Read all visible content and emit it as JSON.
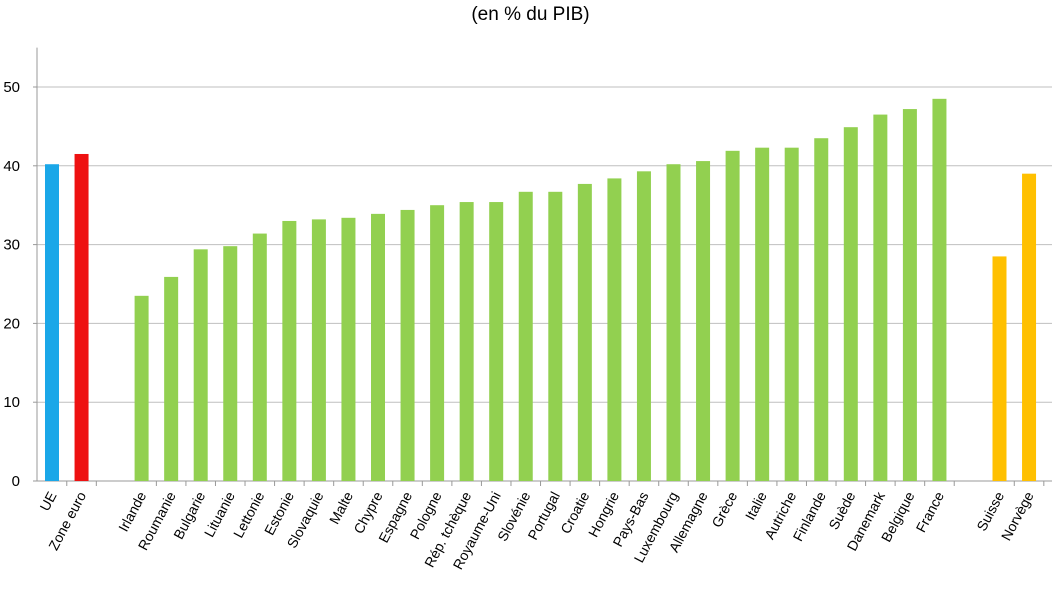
{
  "chart_data": {
    "type": "bar",
    "title": "",
    "subtitle": "(en % du PIB)",
    "xlabel": "",
    "ylabel": "",
    "ylim": [
      0,
      55
    ],
    "yticks": [
      0,
      10,
      20,
      30,
      40,
      50
    ],
    "grid": true,
    "categories": [
      "UE",
      "Zone euro",
      "Irlande",
      "Roumanie",
      "Bulgarie",
      "Lituanie",
      "Lettonie",
      "Estonie",
      "Slovaquie",
      "Malte",
      "Chypre",
      "Espagne",
      "Pologne",
      "Rép. tchèque",
      "Royaume-Uni",
      "Slovénie",
      "Portugal",
      "Croatie",
      "Hongrie",
      "Pays-Bas",
      "Luxembourg",
      "Allemagne",
      "Grèce",
      "Italie",
      "Autriche",
      "Finlande",
      "Suède",
      "Danemark",
      "Belgique",
      "France",
      "Suisse",
      "Norvège"
    ],
    "values": [
      40.2,
      41.5,
      23.5,
      25.9,
      29.4,
      29.8,
      31.4,
      33.0,
      33.2,
      33.4,
      33.9,
      34.4,
      35.0,
      35.4,
      35.4,
      36.7,
      36.7,
      37.7,
      38.4,
      39.3,
      40.2,
      40.6,
      41.9,
      42.3,
      42.3,
      43.5,
      44.9,
      46.5,
      47.2,
      48.5,
      28.5,
      39.0
    ],
    "groups": [
      "aggregate",
      "aggregate",
      "member",
      "member",
      "member",
      "member",
      "member",
      "member",
      "member",
      "member",
      "member",
      "member",
      "member",
      "member",
      "member",
      "member",
      "member",
      "member",
      "member",
      "member",
      "member",
      "member",
      "member",
      "member",
      "member",
      "member",
      "member",
      "member",
      "member",
      "member",
      "non-eu",
      "non-eu"
    ],
    "colors": [
      "#1aa7e8",
      "#ee1111",
      "#92d050",
      "#92d050",
      "#92d050",
      "#92d050",
      "#92d050",
      "#92d050",
      "#92d050",
      "#92d050",
      "#92d050",
      "#92d050",
      "#92d050",
      "#92d050",
      "#92d050",
      "#92d050",
      "#92d050",
      "#92d050",
      "#92d050",
      "#92d050",
      "#92d050",
      "#92d050",
      "#92d050",
      "#92d050",
      "#92d050",
      "#92d050",
      "#92d050",
      "#92d050",
      "#92d050",
      "#92d050",
      "#ffc000",
      "#ffc000"
    ],
    "axis_color": "#999999",
    "grid_color": "#bfbfbf"
  }
}
